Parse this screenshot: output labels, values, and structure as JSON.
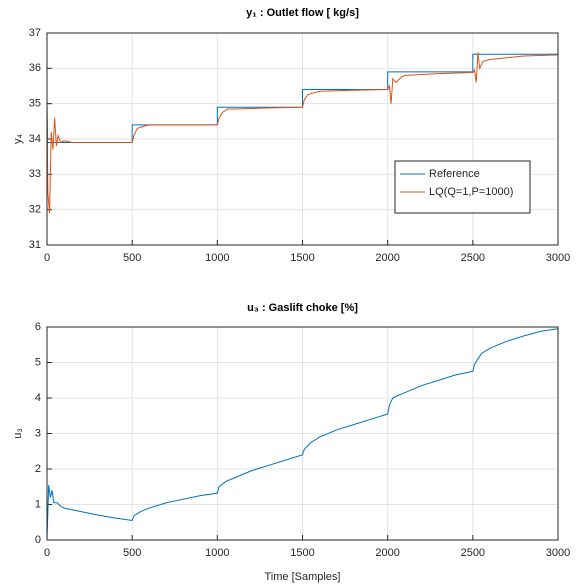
{
  "chart_data": [
    {
      "type": "line",
      "title": "y₁ : Outlet flow [ kg/s]",
      "ylabel": "y₄",
      "xlim": [
        0,
        3000
      ],
      "xticks": [
        0,
        500,
        1000,
        1500,
        2000,
        2500,
        3000
      ],
      "ylim": [
        31,
        37
      ],
      "yticks": [
        31,
        32,
        33,
        34,
        35,
        36,
        37
      ],
      "grid": true,
      "legend": "southeast",
      "series": [
        {
          "name": "Reference",
          "color": "#0072bd",
          "x": [
            0,
            3,
            500,
            500,
            1000,
            1000,
            1500,
            1500,
            2000,
            2000,
            2500,
            2500,
            3000
          ],
          "values": [
            35,
            33.9,
            33.9,
            34.4,
            34.4,
            34.9,
            34.9,
            35.4,
            35.4,
            35.9,
            35.9,
            36.4,
            36.4
          ]
        },
        {
          "name": "LQ(Q=1,P=1000)",
          "color": "#d95319",
          "x": [
            0,
            5,
            15,
            25,
            35,
            45,
            55,
            65,
            80,
            100,
            150,
            300,
            500,
            510,
            530,
            560,
            600,
            700,
            1000,
            1010,
            1030,
            1060,
            1100,
            1300,
            1500,
            1510,
            1530,
            1560,
            1600,
            1800,
            2000,
            2010,
            2020,
            2030,
            2050,
            2080,
            2100,
            2300,
            2500,
            2510,
            2520,
            2530,
            2540,
            2560,
            2600,
            2700,
            2800,
            3000
          ],
          "values": [
            35,
            32.5,
            31.9,
            34.2,
            33.7,
            34.6,
            33.8,
            34.1,
            33.9,
            33.95,
            33.9,
            33.9,
            33.9,
            34.1,
            34.3,
            34.35,
            34.4,
            34.4,
            34.4,
            34.6,
            34.75,
            34.85,
            34.85,
            34.88,
            34.9,
            35.1,
            35.25,
            35.3,
            35.35,
            35.38,
            35.4,
            35.5,
            35.0,
            35.7,
            35.6,
            35.75,
            35.8,
            35.85,
            35.88,
            35.95,
            35.6,
            36.45,
            36.0,
            36.2,
            36.25,
            36.3,
            36.35,
            36.38
          ]
        }
      ]
    },
    {
      "type": "line",
      "title": "u₃ : Gaslift choke [%]",
      "ylabel": "u₃",
      "xlabel": "Time [Samples]",
      "xlim": [
        0,
        3000
      ],
      "xticks": [
        0,
        500,
        1000,
        1500,
        2000,
        2500,
        3000
      ],
      "ylim": [
        0,
        6
      ],
      "yticks": [
        0,
        1,
        2,
        3,
        4,
        5,
        6
      ],
      "grid": true,
      "series": [
        {
          "color": "#0072bd",
          "x": [
            0,
            10,
            20,
            30,
            40,
            60,
            80,
            100,
            200,
            300,
            400,
            500,
            510,
            550,
            600,
            700,
            800,
            900,
            1000,
            1010,
            1050,
            1100,
            1200,
            1300,
            1400,
            1500,
            1510,
            1550,
            1600,
            1700,
            1800,
            1900,
            2000,
            2010,
            2030,
            2050,
            2100,
            2200,
            2300,
            2400,
            2500,
            2510,
            2530,
            2550,
            2600,
            2700,
            2800,
            2900,
            3000
          ],
          "values": [
            0,
            1.55,
            1.2,
            1.4,
            1.05,
            1.05,
            0.95,
            0.9,
            0.8,
            0.7,
            0.62,
            0.55,
            0.68,
            0.8,
            0.9,
            1.05,
            1.15,
            1.25,
            1.32,
            1.5,
            1.65,
            1.75,
            1.95,
            2.1,
            2.25,
            2.4,
            2.55,
            2.75,
            2.9,
            3.1,
            3.25,
            3.4,
            3.55,
            3.8,
            4.0,
            4.05,
            4.15,
            4.35,
            4.5,
            4.65,
            4.75,
            4.95,
            5.1,
            5.25,
            5.4,
            5.6,
            5.75,
            5.88,
            5.95
          ]
        }
      ]
    }
  ]
}
